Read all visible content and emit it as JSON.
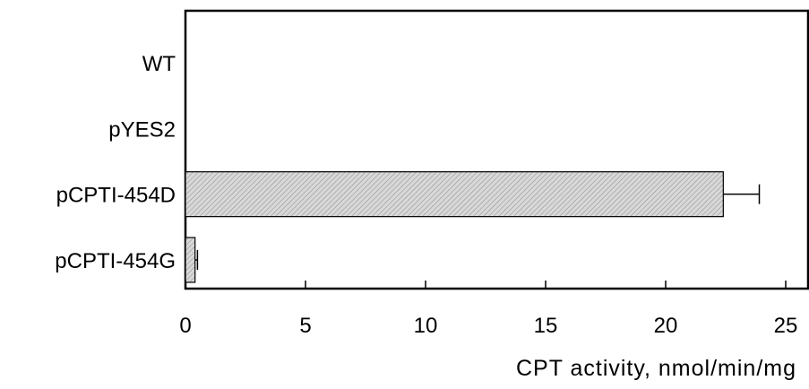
{
  "chart_data": {
    "type": "bar",
    "orientation": "horizontal",
    "categories": [
      "WT",
      "pYES2",
      "pCPTI-454D",
      "pCPTI-454G"
    ],
    "values": [
      0,
      0,
      22.4,
      0.4
    ],
    "error": [
      0,
      0,
      1.5,
      0.1
    ],
    "xlim": [
      0,
      25
    ],
    "xticks": [
      0,
      5,
      10,
      15,
      20,
      25
    ],
    "xlabel": "CPT activity, nmol/min/mg",
    "ylabel": "",
    "title": "",
    "grid": false,
    "legend": "none",
    "bar_color": "#d0d0d0",
    "stroke_color": "#000000"
  }
}
